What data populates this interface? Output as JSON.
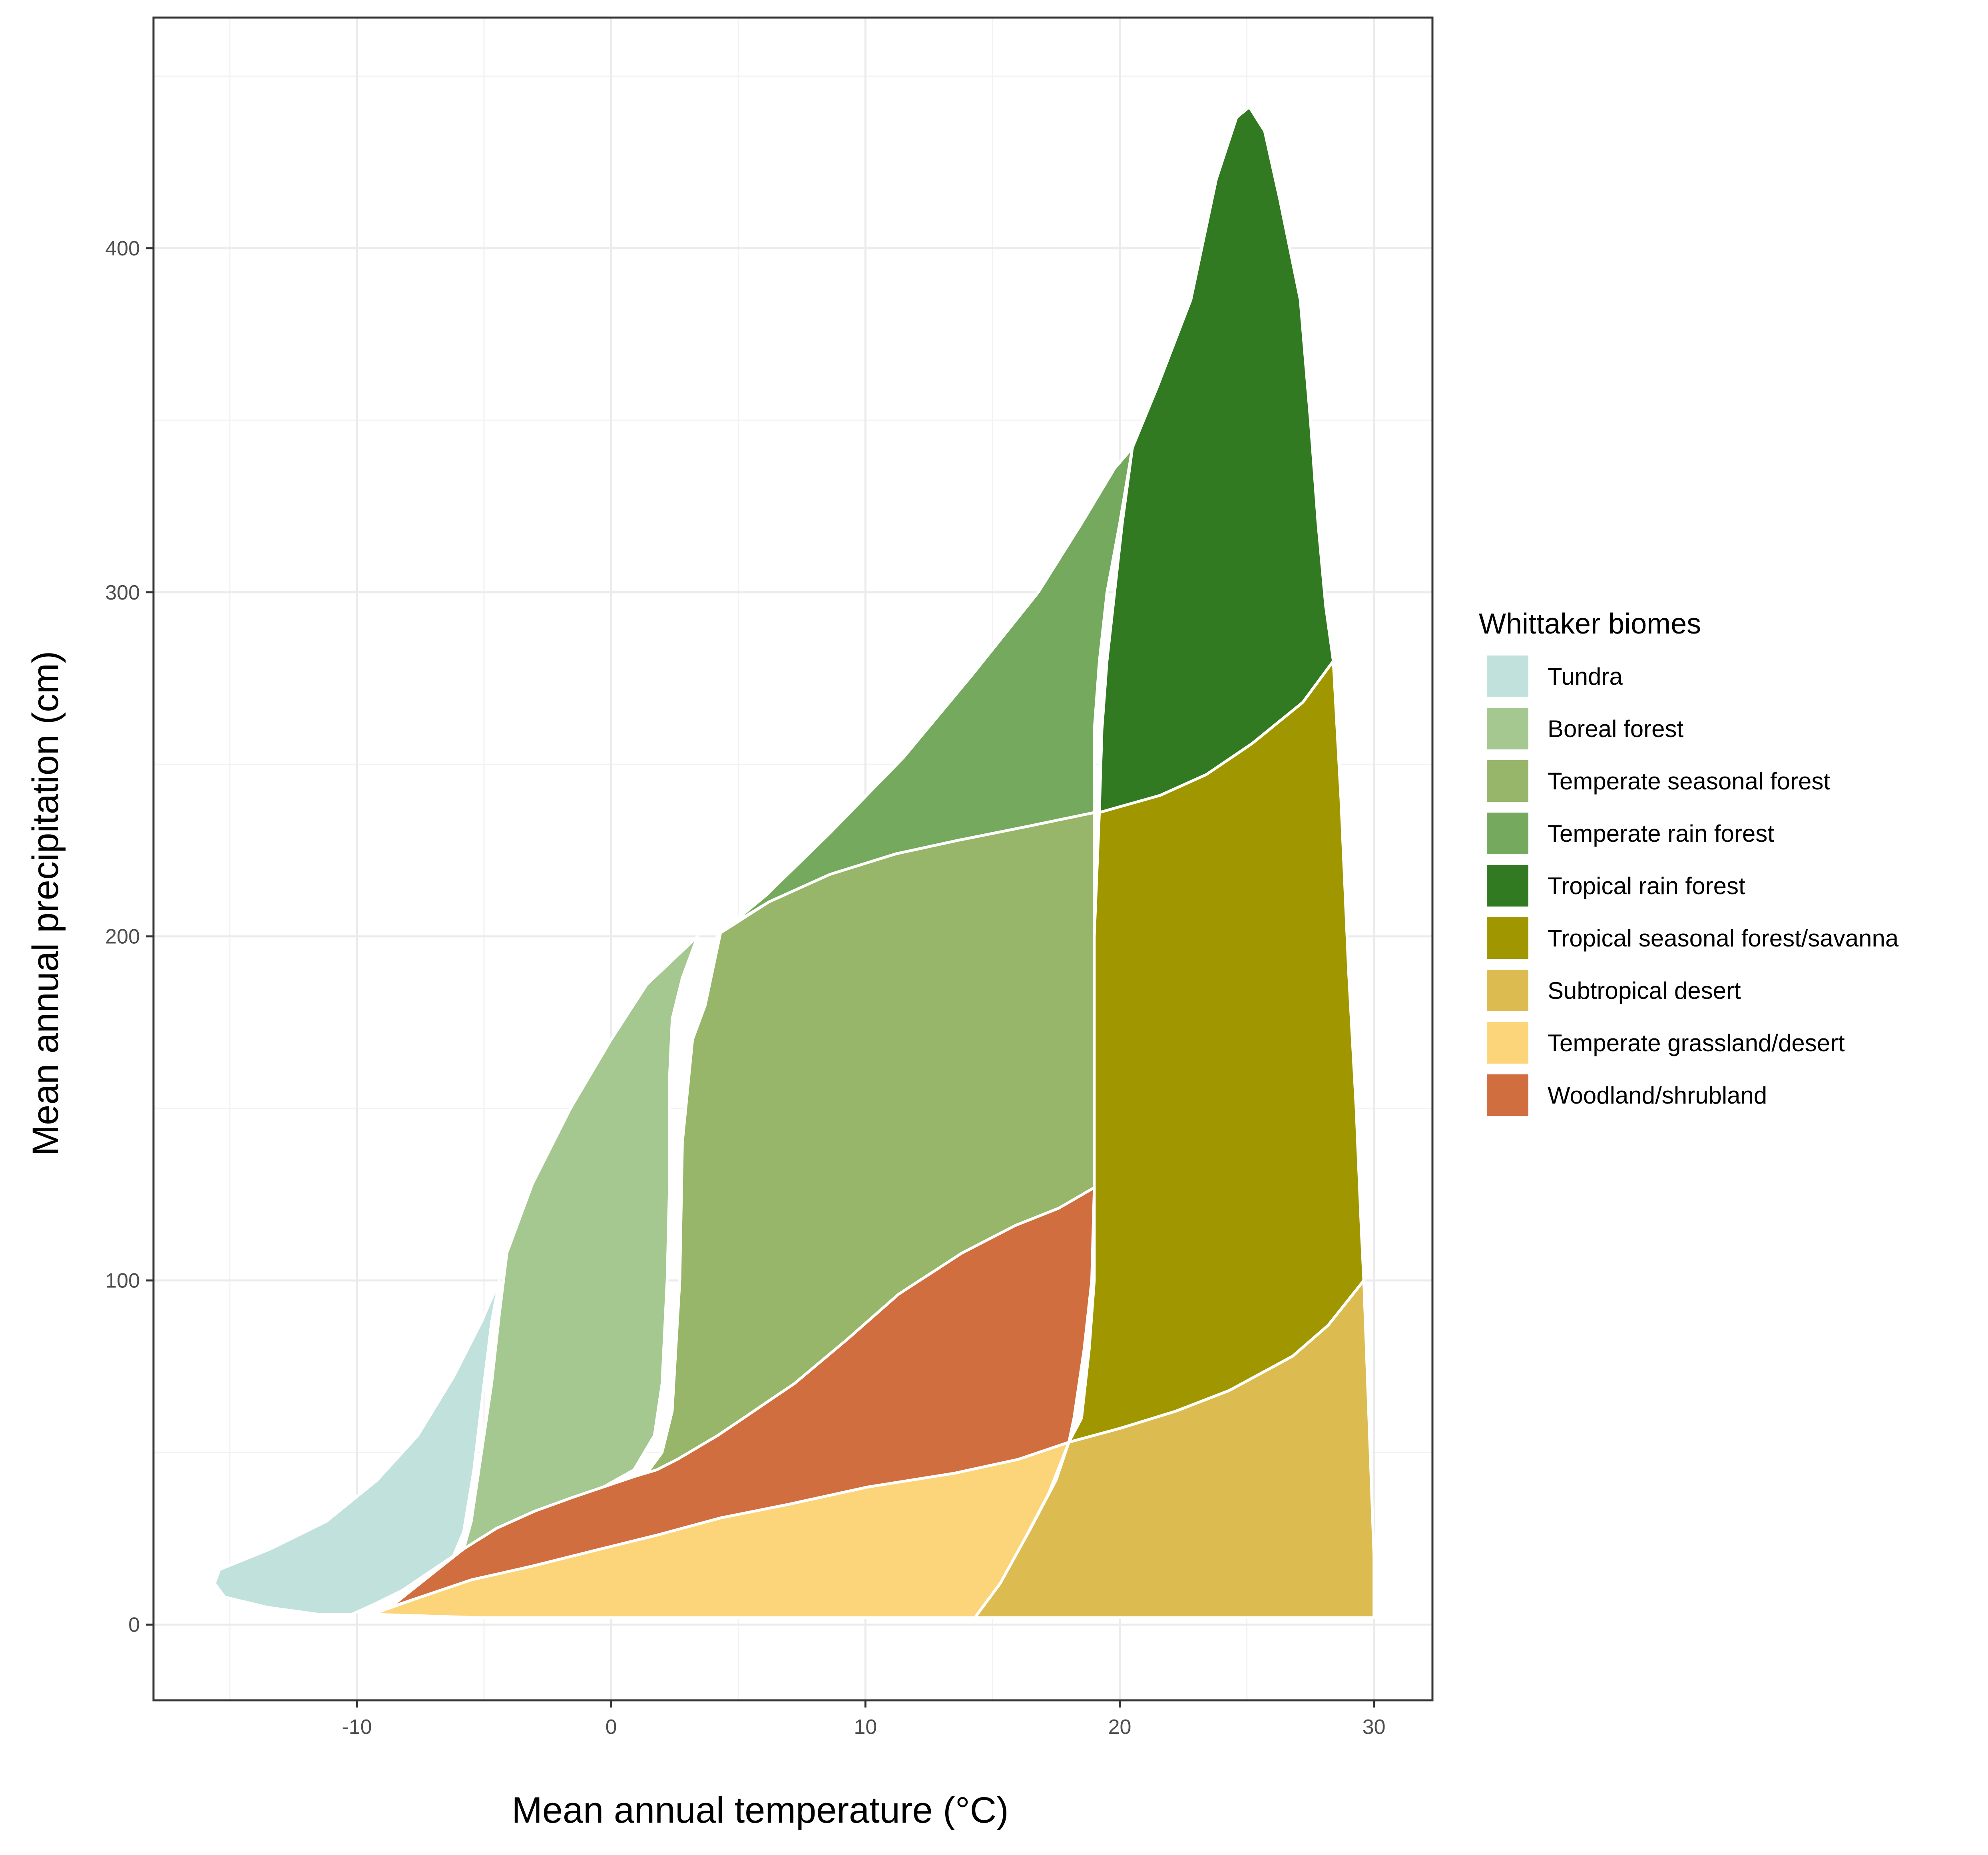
{
  "chart_data": {
    "type": "area",
    "title": "",
    "xlabel": "Mean annual temperature (°C)",
    "ylabel": "Mean annual precipitation (cm)",
    "xlim": [
      -18,
      32.3
    ],
    "ylim": [
      -22,
      467
    ],
    "xticks": [
      -10,
      0,
      10,
      20,
      30
    ],
    "yticks": [
      0,
      100,
      200,
      300,
      400
    ],
    "grid": true,
    "legend": {
      "title": "Whittaker biomes",
      "position": "right"
    },
    "series": [
      {
        "name": "Tundra",
        "color": "#C1E1DD",
        "points": [
          [
            -4.4,
            100
          ],
          [
            -5.1,
            88
          ],
          [
            -6.2,
            72
          ],
          [
            -7.6,
            55
          ],
          [
            -9.2,
            42
          ],
          [
            -11.2,
            30
          ],
          [
            -13.4,
            22
          ],
          [
            -15.4,
            16
          ],
          [
            -15.6,
            12
          ],
          [
            -15.2,
            8
          ],
          [
            -13.5,
            5
          ],
          [
            -11.5,
            3
          ],
          [
            -10.2,
            3
          ],
          [
            -9.3,
            6
          ],
          [
            -8.2,
            10
          ],
          [
            -7.0,
            16
          ],
          [
            -6.2,
            20
          ],
          [
            -5.8,
            27
          ],
          [
            -5.4,
            45
          ],
          [
            -5.0,
            70
          ],
          [
            -4.7,
            88
          ]
        ]
      },
      {
        "name": "Boreal forest",
        "color": "#A5C790",
        "points": [
          [
            -4.1,
            108
          ],
          [
            -3.1,
            128
          ],
          [
            -1.6,
            150
          ],
          [
            0,
            170
          ],
          [
            1.4,
            186
          ],
          [
            3.4,
            200
          ],
          [
            2.8,
            188
          ],
          [
            2.4,
            176
          ],
          [
            2.3,
            160
          ],
          [
            2.3,
            130
          ],
          [
            2.2,
            100
          ],
          [
            2.0,
            70
          ],
          [
            1.7,
            55
          ],
          [
            0.9,
            45
          ],
          [
            -0.3,
            40
          ],
          [
            -1.5,
            37
          ],
          [
            -3.0,
            33
          ],
          [
            -4.5,
            28
          ],
          [
            -5.8,
            22
          ],
          [
            -5.5,
            30
          ],
          [
            -5.1,
            50
          ],
          [
            -4.7,
            70
          ],
          [
            -4.4,
            90
          ]
        ]
      },
      {
        "name": "Temperate seasonal forest",
        "color": "#97B669",
        "points": [
          [
            4.3,
            201
          ],
          [
            6.2,
            210
          ],
          [
            8.6,
            218
          ],
          [
            11.2,
            224
          ],
          [
            13.7,
            228
          ],
          [
            16.4,
            232
          ],
          [
            19,
            236
          ],
          [
            19,
            200
          ],
          [
            19,
            160
          ],
          [
            19,
            126
          ],
          [
            17.6,
            120
          ],
          [
            15.9,
            113
          ],
          [
            13.8,
            104
          ],
          [
            11.3,
            90
          ],
          [
            9.3,
            78
          ],
          [
            7.2,
            63
          ],
          [
            4.2,
            50
          ],
          [
            1.5,
            41
          ],
          [
            0.2,
            40
          ],
          [
            1.3,
            43
          ],
          [
            2.0,
            50
          ],
          [
            2.4,
            62
          ],
          [
            2.7,
            100
          ],
          [
            2.8,
            140
          ],
          [
            3.2,
            170
          ],
          [
            3.7,
            180
          ]
        ]
      },
      {
        "name": "Temperate rain forest",
        "color": "#75A95E",
        "points": [
          [
            4.3,
            201
          ],
          [
            6.1,
            212
          ],
          [
            8.6,
            230
          ],
          [
            11.5,
            252
          ],
          [
            14.2,
            276
          ],
          [
            16.8,
            300
          ],
          [
            18.5,
            320
          ],
          [
            19.8,
            336
          ],
          [
            20.5,
            342
          ],
          [
            20,
            320
          ],
          [
            19.5,
            300
          ],
          [
            19.2,
            280
          ],
          [
            19.0,
            260
          ],
          [
            19.0,
            240
          ],
          [
            19,
            236
          ],
          [
            16.4,
            232
          ],
          [
            13.7,
            228
          ],
          [
            11.2,
            224
          ],
          [
            8.6,
            218
          ],
          [
            6.2,
            210
          ],
          [
            4.2,
            201
          ],
          [
            3.7,
            185
          ],
          [
            3.4,
            176
          ]
        ]
      },
      {
        "name": "Tropical rain forest",
        "color": "#317A22",
        "points": [
          [
            20.5,
            342
          ],
          [
            21.5,
            360
          ],
          [
            22.8,
            385
          ],
          [
            23.8,
            420
          ],
          [
            24.6,
            438
          ],
          [
            25.1,
            441
          ],
          [
            25.7,
            434
          ],
          [
            26.3,
            414
          ],
          [
            27.1,
            385
          ],
          [
            27.5,
            350
          ],
          [
            27.8,
            320
          ],
          [
            28.1,
            296
          ],
          [
            28.4,
            280
          ],
          [
            27.2,
            268
          ],
          [
            25.2,
            256
          ],
          [
            23.4,
            247
          ],
          [
            21.6,
            241
          ],
          [
            19.9,
            237
          ],
          [
            19.2,
            236
          ],
          [
            19.3,
            260
          ],
          [
            19.5,
            280
          ],
          [
            19.8,
            300
          ],
          [
            20.1,
            320
          ]
        ]
      },
      {
        "name": "Tropical seasonal forest/savanna",
        "color": "#A09700",
        "points": [
          [
            19.2,
            236
          ],
          [
            21.6,
            241
          ],
          [
            23.4,
            247
          ],
          [
            25.2,
            256
          ],
          [
            27.2,
            268
          ],
          [
            28.4,
            280
          ],
          [
            28.7,
            240
          ],
          [
            29.0,
            190
          ],
          [
            29.3,
            150
          ],
          [
            29.5,
            115
          ],
          [
            29.6,
            100
          ],
          [
            28.2,
            87
          ],
          [
            26.8,
            78
          ],
          [
            24.3,
            68
          ],
          [
            22.2,
            62
          ],
          [
            20.0,
            57
          ],
          [
            18.0,
            53
          ],
          [
            18.5,
            60
          ],
          [
            18.8,
            80
          ],
          [
            19.0,
            100
          ],
          [
            19.0,
            126
          ],
          [
            19.0,
            160
          ],
          [
            19.0,
            200
          ]
        ]
      },
      {
        "name": "Subtropical desert",
        "color": "#DCBB50",
        "points": [
          [
            18.0,
            53
          ],
          [
            20.0,
            57
          ],
          [
            22.2,
            62
          ],
          [
            24.3,
            68
          ],
          [
            26.8,
            78
          ],
          [
            28.2,
            87
          ],
          [
            29.6,
            100
          ],
          [
            29.8,
            60
          ],
          [
            30.0,
            20
          ],
          [
            30.0,
            2
          ],
          [
            26,
            2
          ],
          [
            22,
            2
          ],
          [
            18,
            2
          ],
          [
            14.3,
            2
          ],
          [
            15.3,
            12
          ],
          [
            16.5,
            28
          ],
          [
            17.5,
            42
          ]
        ]
      },
      {
        "name": "Temperate grassland/desert",
        "color": "#FCD57A",
        "points": [
          [
            -9.4,
            3
          ],
          [
            -7.5,
            8
          ],
          [
            -5.5,
            13
          ],
          [
            -3.1,
            17
          ],
          [
            -0.4,
            22
          ],
          [
            1.8,
            26
          ],
          [
            4.3,
            31
          ],
          [
            7.0,
            35
          ],
          [
            10.1,
            40
          ],
          [
            13.5,
            44
          ],
          [
            16.0,
            48
          ],
          [
            18.0,
            53
          ],
          [
            17.2,
            38
          ],
          [
            16.2,
            24
          ],
          [
            15.3,
            12
          ],
          [
            14.3,
            2
          ],
          [
            10,
            2
          ],
          [
            5,
            2
          ],
          [
            0,
            2
          ],
          [
            -5,
            2
          ]
        ]
      },
      {
        "name": "Woodland/shrubland",
        "color": "#D16E3F",
        "points": [
          [
            -8.7,
            5
          ],
          [
            -7.0,
            15
          ],
          [
            -5.8,
            22
          ],
          [
            -4.5,
            28
          ],
          [
            -3.0,
            33
          ],
          [
            -1.5,
            37
          ],
          [
            -0.3,
            40
          ],
          [
            0.9,
            43
          ],
          [
            1.8,
            45
          ],
          [
            2.6,
            48
          ],
          [
            4.2,
            55
          ],
          [
            7.2,
            70
          ],
          [
            9.3,
            83
          ],
          [
            11.3,
            96
          ],
          [
            13.8,
            108
          ],
          [
            15.9,
            116
          ],
          [
            17.6,
            121
          ],
          [
            19.0,
            127
          ],
          [
            18.9,
            100
          ],
          [
            18.6,
            80
          ],
          [
            18.2,
            60
          ],
          [
            18.0,
            53
          ],
          [
            16.0,
            48
          ],
          [
            13.5,
            44
          ],
          [
            10.1,
            40
          ],
          [
            7.0,
            35
          ],
          [
            4.3,
            31
          ],
          [
            1.8,
            26
          ],
          [
            -0.4,
            22
          ],
          [
            -3.1,
            17
          ],
          [
            -5.5,
            13
          ],
          [
            -7.5,
            8
          ]
        ]
      }
    ]
  }
}
